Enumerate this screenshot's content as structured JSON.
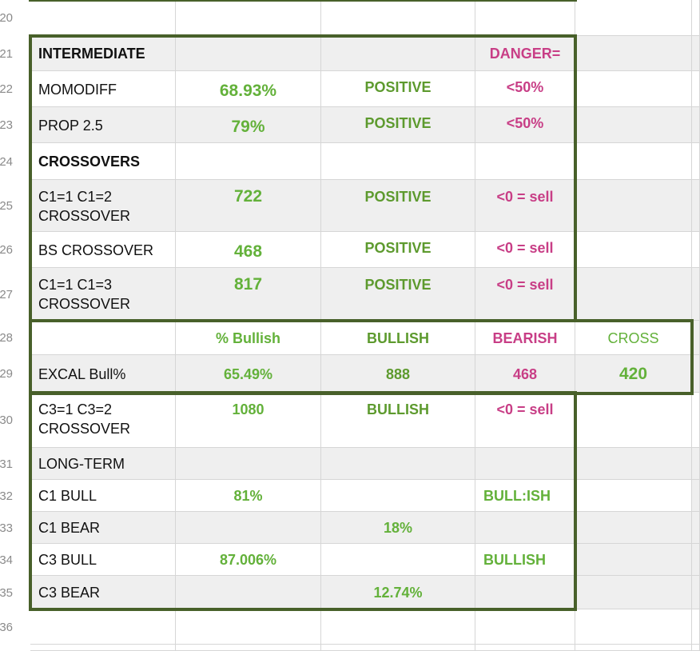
{
  "row_numbers": [
    "20",
    "21",
    "22",
    "23",
    "24",
    "25",
    "26",
    "27",
    "28",
    "29",
    "30",
    "31",
    "32",
    "33",
    "34",
    "35",
    "36"
  ],
  "rows": {
    "r21": {
      "a": "INTERMEDIATE",
      "d": "DANGER="
    },
    "r22": {
      "a": "MOMODIFF",
      "b": "68.93%",
      "c": "POSITIVE",
      "d": "<50%"
    },
    "r23": {
      "a": "PROP 2.5",
      "b": "79%",
      "c": "POSITIVE",
      "d": "<50%"
    },
    "r24": {
      "a": "CROSSOVERS"
    },
    "r25": {
      "a1": "C1=1 C1=2",
      "a2": "CROSSOVER",
      "b": "722",
      "c": "POSITIVE",
      "d": "<0 = sell"
    },
    "r26": {
      "a": "BS CROSSOVER",
      "b": "468",
      "c": "POSITIVE",
      "d": "<0 = sell"
    },
    "r27": {
      "a1": "C1=1 C1=3",
      "a2": "CROSSOVER",
      "b": "817",
      "c": "POSITIVE",
      "d": "<0 = sell"
    },
    "r28": {
      "b": "% Bullish",
      "c": "BULLISH",
      "d": "BEARISH",
      "e": "CROSS"
    },
    "r29": {
      "a": "EXCAL Bull%",
      "b": "65.49%",
      "c": "888",
      "d": "468",
      "e": "420"
    },
    "r30": {
      "a1": "C3=1 C3=2",
      "a2": "CROSSOVER",
      "b": "1080",
      "c": "BULLISH",
      "d": "<0 = sell"
    },
    "r31": {
      "a": "LONG-TERM"
    },
    "r32": {
      "a": "C1 BULL",
      "b": "81%",
      "d": "BULL:ISH"
    },
    "r33": {
      "a": "C1 BEAR",
      "c": "18%"
    },
    "r34": {
      "a": "C3 BULL",
      "b": "87.006%",
      "d": "BULLISH"
    },
    "r35": {
      "a": "C3 BEAR",
      "c": "12.74%"
    }
  },
  "colors": {
    "frame": "#48602a",
    "positive_green": "#63b13a",
    "danger_magenta": "#c83e86",
    "shade": "#efefef",
    "gridline": "#d6d6d6"
  }
}
